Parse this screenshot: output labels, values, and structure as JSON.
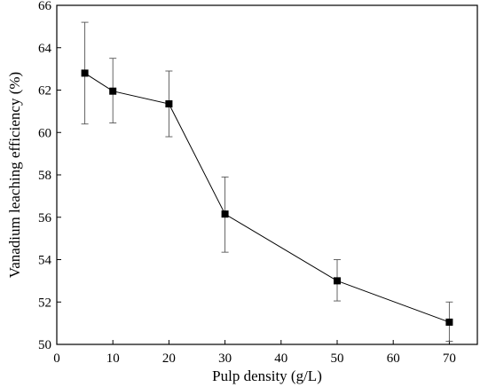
{
  "chart_data": {
    "type": "line",
    "title": "",
    "xlabel": "Pulp density (g/L)",
    "ylabel": "Vanadium leaching efficiency (%)",
    "xlim": [
      0,
      75
    ],
    "ylim": [
      50,
      66
    ],
    "x_ticks": [
      0,
      10,
      20,
      30,
      40,
      50,
      60,
      70
    ],
    "y_ticks": [
      50,
      52,
      54,
      56,
      58,
      60,
      62,
      64,
      66
    ],
    "grid": false,
    "legend": "none",
    "marker": "square",
    "line_color": "#000000",
    "series": [
      {
        "x": [
          5,
          10,
          20,
          30,
          50,
          70
        ],
        "y": [
          62.8,
          61.95,
          61.35,
          56.15,
          53.0,
          51.05
        ],
        "yerr_upper": [
          65.2,
          63.5,
          62.9,
          57.9,
          54.0,
          52.0
        ],
        "yerr_lower": [
          60.4,
          60.45,
          59.8,
          54.35,
          52.05,
          50.15
        ]
      }
    ]
  }
}
